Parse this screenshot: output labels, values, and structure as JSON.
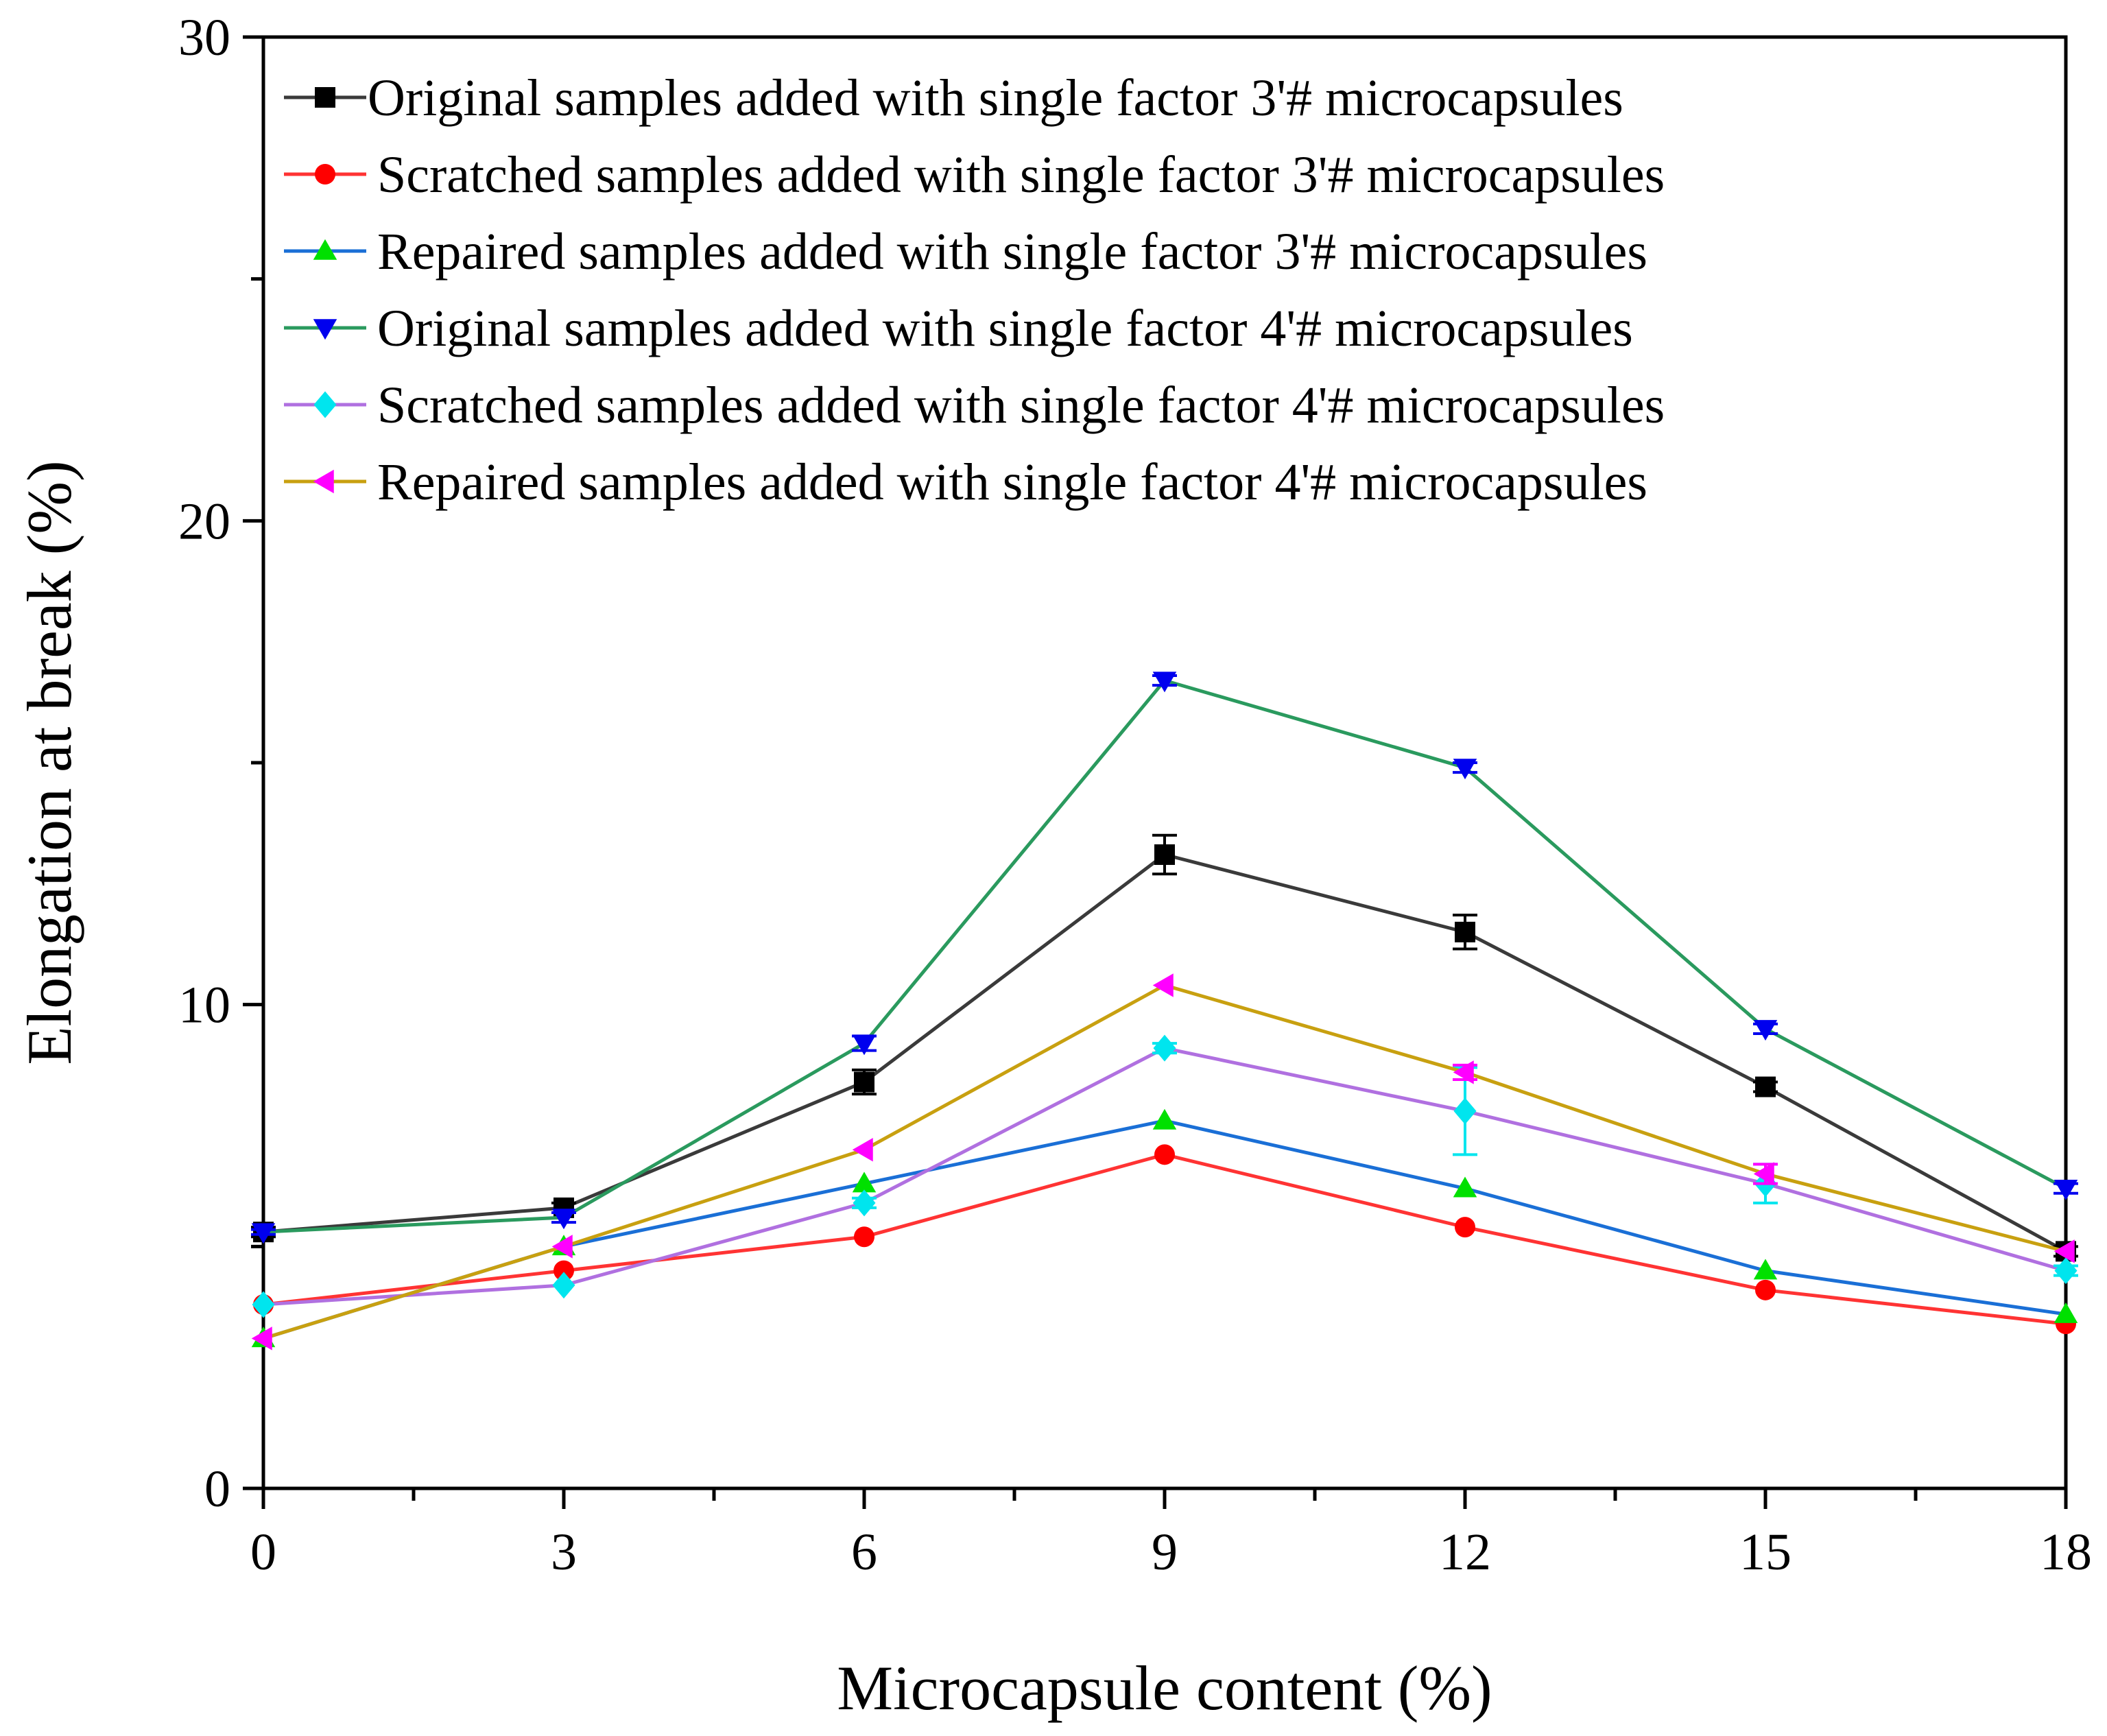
{
  "chart_data": {
    "type": "line",
    "title": "",
    "xlabel": "Microcapsule content (%)",
    "ylabel": "Elongation at break (%)",
    "xlim": [
      0,
      18
    ],
    "ylim": [
      0,
      30
    ],
    "grid": false,
    "legend_position": "top-left",
    "x": [
      0,
      3,
      6,
      9,
      12,
      15,
      18
    ],
    "xticks": [
      "0",
      "3",
      "6",
      "9",
      "12",
      "15",
      "18"
    ],
    "yticks": [
      "0",
      "10",
      "20",
      "30"
    ],
    "series": [
      {
        "name": "Original samples added with single factor 3'# microcapsules",
        "line_color": "#3a3a3a",
        "marker_color": "#000000",
        "marker": "square",
        "values": [
          5.3,
          5.8,
          8.4,
          13.1,
          11.5,
          8.3,
          4.9
        ],
        "errors": [
          0.1,
          0.1,
          0.25,
          0.4,
          0.35,
          0.1,
          0.1
        ]
      },
      {
        "name": "Scratched samples added with single factor 3'# microcapsules",
        "line_color": "#ff3333",
        "marker_color": "#ff0000",
        "marker": "circle",
        "values": [
          3.8,
          4.5,
          5.2,
          6.9,
          5.4,
          4.1,
          3.4
        ],
        "errors": [
          0,
          0,
          0,
          0,
          0,
          0,
          0
        ]
      },
      {
        "name": "Repaired samples added with single factor 3'# microcapsules",
        "line_color": "#1a6fd6",
        "marker_color": "#00e000",
        "marker": "triangle-up",
        "values": [
          3.1,
          5.0,
          6.3,
          7.6,
          6.2,
          4.5,
          3.6
        ],
        "errors": [
          0,
          0,
          0,
          0,
          0,
          0,
          0
        ]
      },
      {
        "name": "Original samples added with single factor 4'# microcapsules",
        "line_color": "#2a9a5e",
        "marker_color": "#0000ee",
        "marker": "triangle-down",
        "values": [
          5.3,
          5.6,
          9.2,
          16.7,
          14.9,
          9.5,
          6.2
        ],
        "errors": [
          0.05,
          0.1,
          0.15,
          0.1,
          0.1,
          0.1,
          0.1
        ]
      },
      {
        "name": "Scratched samples added with single factor 4'# microcapsules",
        "line_color": "#b070e0",
        "marker_color": "#00e5ee",
        "marker": "diamond",
        "values": [
          3.8,
          4.2,
          5.9,
          9.1,
          7.8,
          6.3,
          4.5
        ],
        "errors": [
          0,
          0,
          0.1,
          0.1,
          0.9,
          0.4,
          0.1
        ]
      },
      {
        "name": "Repaired samples added with single factor 4'# microcapsules",
        "line_color": "#c8a010",
        "marker_color": "#ff00ff",
        "marker": "triangle-left",
        "values": [
          3.1,
          5.0,
          7.0,
          10.4,
          8.6,
          6.5,
          4.9
        ],
        "errors": [
          0,
          0,
          0,
          0,
          0.15,
          0.2,
          0
        ]
      }
    ]
  }
}
